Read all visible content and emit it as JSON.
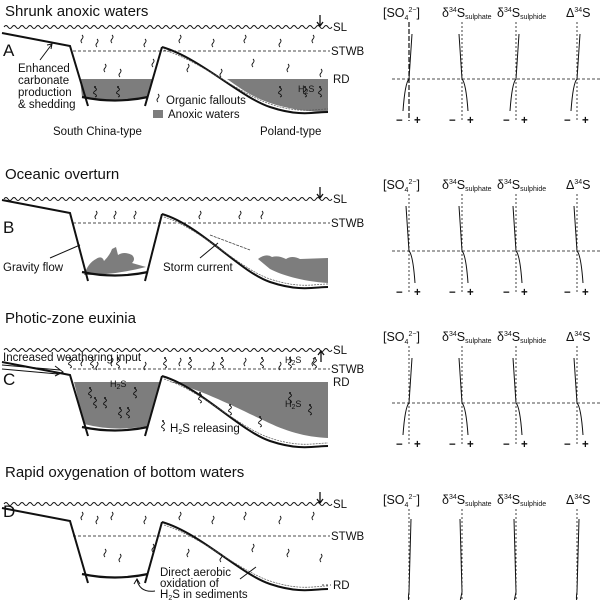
{
  "colors": {
    "anoxic": "#7d7d7d",
    "line": "#111111"
  },
  "labels": {
    "sl": "SL",
    "stwb": "STWB",
    "rd": "RD",
    "minus": "−",
    "plus": "+",
    "h2s_h": "H",
    "h2s_2": "2",
    "h2s_s": "S"
  },
  "columns": {
    "so4": {
      "open": "[SO",
      "sub": "4",
      "sup": "2−",
      "close": "]"
    },
    "sulphate": {
      "delta": "δ",
      "sup": "34",
      "s": "S",
      "sub": "sulphate"
    },
    "sulphide": {
      "delta": "δ",
      "sup": "34",
      "s": "S",
      "sub": "sulphide"
    },
    "cap_delta": {
      "delta": "Δ",
      "sup": "34",
      "s": "S"
    }
  },
  "panels": [
    {
      "letter": "A",
      "title": "Shrunk anoxic waters",
      "sea_level_trend": "down",
      "notes": {
        "carbonate": [
          "Enhanced",
          "carbonate",
          "production",
          "& shedding"
        ],
        "left_type": "South China-type",
        "right_type": "Poland-type"
      },
      "legend": {
        "organic": "Organic fallouts",
        "anoxic": "Anoxic waters"
      }
    },
    {
      "letter": "B",
      "title": "Oceanic overturn",
      "sea_level_trend": "down",
      "notes": {
        "gravity": "Gravity flow",
        "storm": "Storm current"
      }
    },
    {
      "letter": "C",
      "title": "Photic-zone euxinia",
      "sea_level_trend": "up",
      "notes": {
        "weathering": "Increased weathering input",
        "releasing": " releasing"
      }
    },
    {
      "letter": "D",
      "title": "Rapid oxygenation of bottom waters",
      "sea_level_trend": "down",
      "notes": {
        "oxidation": [
          "Direct aerobic",
          "oxidation of"
        ],
        "sediments": " in sediments"
      }
    }
  ]
}
